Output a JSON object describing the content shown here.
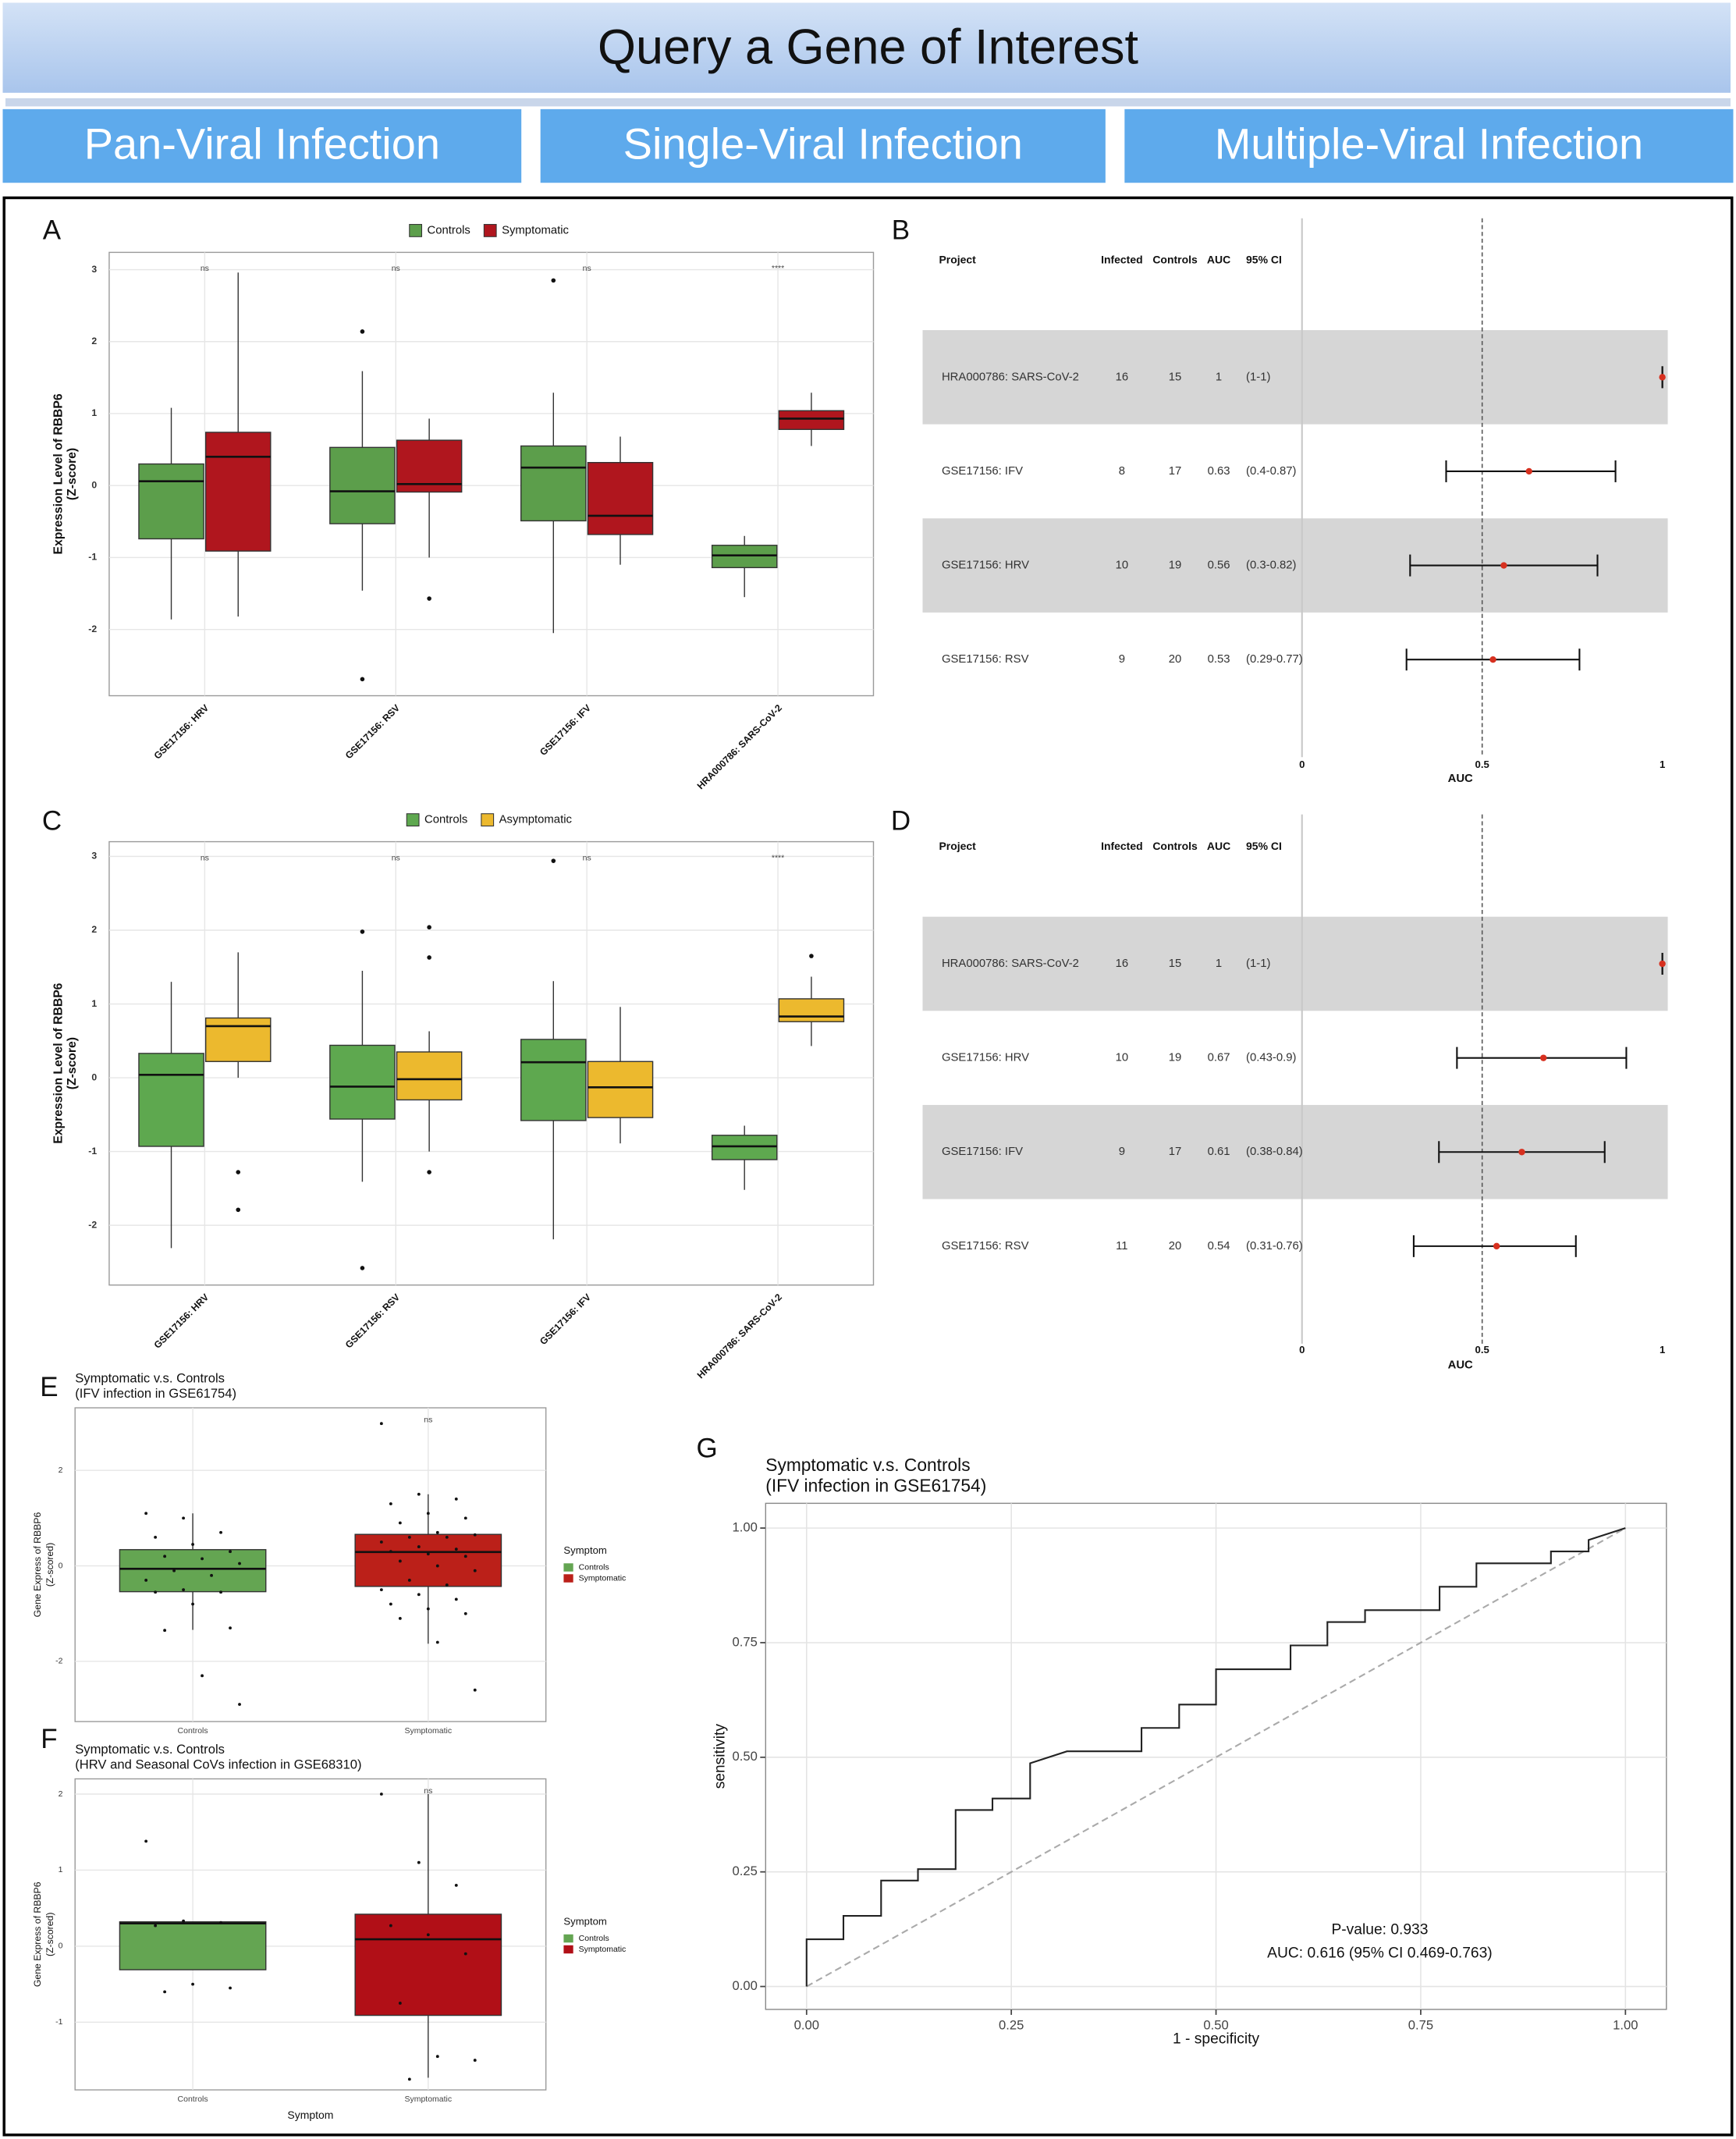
{
  "header": {
    "title": "Query a Gene of Interest"
  },
  "tabs": [
    "Pan-Viral Infection",
    "Single-Viral Infection",
    "Multiple-Viral Infection"
  ],
  "chart_data": [
    {
      "panel": "A",
      "type": "box",
      "legend_position": "top",
      "ylabel": [
        "Expression Level of RBBP6",
        "(Z-score)"
      ],
      "categories": [
        "GSE17156: HRV",
        "GSE17156: RSV",
        "GSE17156: IFV",
        "HRA000786: SARS-CoV-2"
      ],
      "significance": [
        "ns",
        "ns",
        "ns",
        "****"
      ],
      "series": [
        {
          "name": "Controls",
          "color": "#5c9e4b",
          "boxes": [
            {
              "min": -1.86,
              "q1": -0.74,
              "median": 0.06,
              "q3": 0.3,
              "max": 1.08
            },
            {
              "min": -1.46,
              "q1": -0.53,
              "median": -0.08,
              "q3": 0.53,
              "max": 1.59,
              "outliers": [
                2.14,
                -2.69
              ]
            },
            {
              "min": -2.05,
              "q1": -0.49,
              "median": 0.25,
              "q3": 0.55,
              "max": 1.29,
              "outliers": [
                2.85
              ]
            },
            {
              "min": -1.55,
              "q1": -1.14,
              "median": -0.97,
              "q3": -0.83,
              "max": -0.7
            }
          ]
        },
        {
          "name": "Symptomatic",
          "color": "#b0161e",
          "boxes": [
            {
              "min": -1.82,
              "q1": -0.91,
              "median": 0.4,
              "q3": 0.74,
              "max": 2.96
            },
            {
              "min": -1.0,
              "q1": -0.09,
              "median": 0.02,
              "q3": 0.63,
              "max": 0.93,
              "outliers": [
                -1.57
              ]
            },
            {
              "min": -1.1,
              "q1": -0.68,
              "median": -0.42,
              "q3": 0.32,
              "max": 0.68
            },
            {
              "min": 0.55,
              "q1": 0.78,
              "median": 0.93,
              "q3": 1.04,
              "max": 1.29
            }
          ]
        }
      ],
      "ylim": [
        -2.92,
        3.24
      ],
      "yticks": [
        -2,
        -1,
        0,
        1,
        2,
        3
      ],
      "grid": true
    },
    {
      "panel": "B",
      "type": "forest",
      "columns": [
        "Project",
        "Infected",
        "Controls",
        "AUC",
        "95% CI"
      ],
      "rows": [
        {
          "project": "HRA000786: SARS-CoV-2",
          "infected": 16,
          "controls": 15,
          "auc": 1,
          "ci_label": "(1-1)",
          "ci": [
            1,
            1
          ]
        },
        {
          "project": "GSE17156: IFV",
          "infected": 8,
          "controls": 17,
          "auc": 0.63,
          "ci_label": "(0.4-0.87)",
          "ci": [
            0.4,
            0.87
          ]
        },
        {
          "project": "GSE17156: HRV",
          "infected": 10,
          "controls": 19,
          "auc": 0.56,
          "ci_label": "(0.3-0.82)",
          "ci": [
            0.3,
            0.82
          ]
        },
        {
          "project": "GSE17156: RSV",
          "infected": 9,
          "controls": 20,
          "auc": 0.53,
          "ci_label": "(0.29-0.77)",
          "ci": [
            0.29,
            0.77
          ]
        }
      ],
      "xlabel": "AUC",
      "xlim": [
        0,
        1.015
      ],
      "xticks": [
        0,
        0.5,
        1
      ],
      "reference": 0.5,
      "striped": true,
      "point_color": "#d7301f"
    },
    {
      "panel": "C",
      "type": "box",
      "legend_position": "top",
      "ylabel": [
        "Expression Level of RBBP6",
        "(Z-score)"
      ],
      "categories": [
        "GSE17156: HRV",
        "GSE17156: RSV",
        "GSE17156: IFV",
        "HRA000786: SARS-CoV-2"
      ],
      "significance": [
        "ns",
        "ns",
        "ns",
        "****"
      ],
      "series": [
        {
          "name": "Controls",
          "color": "#5ea84f",
          "boxes": [
            {
              "min": -2.31,
              "q1": -0.93,
              "median": 0.04,
              "q3": 0.33,
              "max": 1.3
            },
            {
              "min": -1.41,
              "q1": -0.56,
              "median": -0.12,
              "q3": 0.44,
              "max": 1.45,
              "outliers": [
                1.98,
                -2.58
              ]
            },
            {
              "min": -2.19,
              "q1": -0.58,
              "median": 0.21,
              "q3": 0.52,
              "max": 1.31,
              "outliers": [
                2.94
              ]
            },
            {
              "min": -1.52,
              "q1": -1.11,
              "median": -0.93,
              "q3": -0.78,
              "max": -0.65
            }
          ]
        },
        {
          "name": "Asymptomatic",
          "color": "#ecb92e",
          "boxes": [
            {
              "min": 0.0,
              "q1": 0.22,
              "median": 0.7,
              "q3": 0.81,
              "max": 1.7,
              "outliers": [
                -1.28,
                -1.79
              ]
            },
            {
              "min": -1.0,
              "q1": -0.3,
              "median": -0.02,
              "q3": 0.35,
              "max": 0.63,
              "outliers": [
                2.04,
                1.63,
                -1.28
              ]
            },
            {
              "min": -0.89,
              "q1": -0.54,
              "median": -0.13,
              "q3": 0.22,
              "max": 0.96
            },
            {
              "min": 0.43,
              "q1": 0.76,
              "median": 0.83,
              "q3": 1.07,
              "max": 1.37,
              "outliers": [
                1.65
              ]
            }
          ]
        }
      ],
      "ylim": [
        -2.81,
        3.2
      ],
      "yticks": [
        -2,
        -1,
        0,
        1,
        2,
        3
      ],
      "grid": true
    },
    {
      "panel": "D",
      "type": "forest",
      "columns": [
        "Project",
        "Infected",
        "Controls",
        "AUC",
        "95% CI"
      ],
      "rows": [
        {
          "project": "HRA000786: SARS-CoV-2",
          "infected": 16,
          "controls": 15,
          "auc": 1,
          "ci_label": "(1-1)",
          "ci": [
            1,
            1
          ]
        },
        {
          "project": "GSE17156: HRV",
          "infected": 10,
          "controls": 19,
          "auc": 0.67,
          "ci_label": "(0.43-0.9)",
          "ci": [
            0.43,
            0.9
          ]
        },
        {
          "project": "GSE17156: IFV",
          "infected": 9,
          "controls": 17,
          "auc": 0.61,
          "ci_label": "(0.38-0.84)",
          "ci": [
            0.38,
            0.84
          ]
        },
        {
          "project": "GSE17156: RSV",
          "infected": 11,
          "controls": 20,
          "auc": 0.54,
          "ci_label": "(0.31-0.76)",
          "ci": [
            0.31,
            0.76
          ]
        }
      ],
      "xlabel": "AUC",
      "xlim": [
        0,
        1.015
      ],
      "xticks": [
        0,
        0.5,
        1
      ],
      "reference": 0.5,
      "striped": true,
      "point_color": "#d7301f"
    },
    {
      "panel": "E",
      "type": "box",
      "legend_position": "right",
      "legend_title": "Symptom",
      "title": [
        "Symptomatic v.s. Controls",
        "(IFV infection in GSE61754)"
      ],
      "ylabel": [
        "Gene Express of RBBP6",
        "(Z-scored)"
      ],
      "categories": [
        "Controls",
        "Symptomatic"
      ],
      "significance": [
        null,
        "ns"
      ],
      "series": [
        {
          "name": "Controls",
          "color": "#64a552",
          "boxes": [
            {
              "min": -1.34,
              "q1": -0.54,
              "median": -0.06,
              "q3": 0.34,
              "max": 1.1,
              "points": [
                1.1,
                1.0,
                0.7,
                0.6,
                0.45,
                0.3,
                0.2,
                0.15,
                0.05,
                -0.1,
                -0.2,
                -0.3,
                -0.5,
                -0.55,
                -0.55,
                -0.8,
                -1.3,
                -1.35,
                -2.3,
                -2.9
              ]
            },
            null
          ]
        },
        {
          "name": "Symptomatic",
          "color": "#bb2019",
          "boxes": [
            null,
            {
              "min": -1.63,
              "q1": -0.43,
              "median": 0.29,
              "q3": 0.66,
              "max": 1.5,
              "points": [
                2.98,
                1.5,
                1.4,
                1.3,
                1.1,
                1.0,
                0.9,
                0.7,
                0.65,
                0.6,
                0.6,
                0.5,
                0.4,
                0.35,
                0.3,
                0.25,
                0.2,
                0.1,
                0.0,
                -0.1,
                -0.3,
                -0.4,
                -0.5,
                -0.6,
                -0.7,
                -0.8,
                -0.9,
                -1.0,
                -1.1,
                -1.6,
                -2.6
              ]
            }
          ]
        }
      ],
      "ylim": [
        -3.26,
        3.31
      ],
      "yticks": [
        -2,
        0,
        2
      ],
      "grid": true
    },
    {
      "panel": "F",
      "type": "box",
      "legend_position": "right",
      "legend_title": "Symptom",
      "title": [
        "Symptomatic v.s. Controls",
        "(HRV and Seasonal CoVs infection in GSE68310)"
      ],
      "ylabel": [
        "Gene Express of RBBP6",
        "(Z-scored)"
      ],
      "xlabel": "Symptom",
      "categories": [
        "Controls",
        "Symptomatic"
      ],
      "significance": [
        null,
        "ns"
      ],
      "series": [
        {
          "name": "Controls",
          "color": "#64a552",
          "boxes": [
            {
              "min": -0.31,
              "q1": -0.31,
              "median": 0.3,
              "q3": 0.32,
              "max": 0.32,
              "points": [
                1.38,
                0.33,
                0.31,
                0.27,
                -0.5,
                -0.55,
                -0.6
              ]
            },
            null
          ]
        },
        {
          "name": "Symptomatic",
          "color": "#b10f17",
          "boxes": [
            null,
            {
              "min": -1.73,
              "q1": -0.91,
              "median": 0.09,
              "q3": 0.42,
              "max": 2.0,
              "points": [
                2.0,
                1.1,
                0.8,
                0.27,
                0.15,
                -0.1,
                -0.75,
                -1.45,
                -1.5,
                -1.75
              ]
            }
          ]
        }
      ],
      "ylim": [
        -1.89,
        2.2
      ],
      "yticks": [
        -1,
        0,
        1,
        2
      ],
      "grid": true
    },
    {
      "panel": "G",
      "type": "roc",
      "title": [
        "Symptomatic v.s. Controls",
        "(IFV infection in GSE61754)"
      ],
      "xlabel": "1 - specificity",
      "ylabel": "sensitivity",
      "x": [
        0,
        0,
        0.045,
        0.045,
        0.091,
        0.091,
        0.136,
        0.136,
        0.182,
        0.182,
        0.227,
        0.227,
        0.273,
        0.273,
        0.318,
        0.409,
        0.409,
        0.455,
        0.455,
        0.5,
        0.5,
        0.591,
        0.591,
        0.636,
        0.636,
        0.682,
        0.682,
        0.773,
        0.773,
        0.818,
        0.818,
        0.909,
        0.909,
        0.955,
        0.955,
        1
      ],
      "values": [
        0,
        0.103,
        0.103,
        0.154,
        0.154,
        0.231,
        0.231,
        0.256,
        0.256,
        0.385,
        0.385,
        0.41,
        0.41,
        0.487,
        0.513,
        0.513,
        0.564,
        0.564,
        0.615,
        0.615,
        0.692,
        0.692,
        0.744,
        0.744,
        0.795,
        0.795,
        0.821,
        0.821,
        0.872,
        0.872,
        0.923,
        0.923,
        0.949,
        0.949,
        0.974,
        1
      ],
      "color": "#222222",
      "xlim": [
        -0.05,
        1.05
      ],
      "ylim": [
        -0.05,
        1.054
      ],
      "xticks": [
        {
          "value": 0,
          "label": "0.00"
        },
        {
          "value": 0.25,
          "label": "0.25"
        },
        {
          "value": 0.5,
          "label": "0.50"
        },
        {
          "value": 0.75,
          "label": "0.75"
        },
        {
          "value": 1,
          "label": "1.00"
        }
      ],
      "yticks": [
        {
          "value": 0,
          "label": "0.00"
        },
        {
          "value": 0.25,
          "label": "0.25"
        },
        {
          "value": 0.5,
          "label": "0.50"
        },
        {
          "value": 0.75,
          "label": "0.75"
        },
        {
          "value": 1,
          "label": "1.00"
        }
      ],
      "annotations": [
        "P-value: 0.933",
        "AUC: 0.616 (95% CI 0.469-0.763)"
      ],
      "diagonal": true,
      "grid": true
    }
  ]
}
